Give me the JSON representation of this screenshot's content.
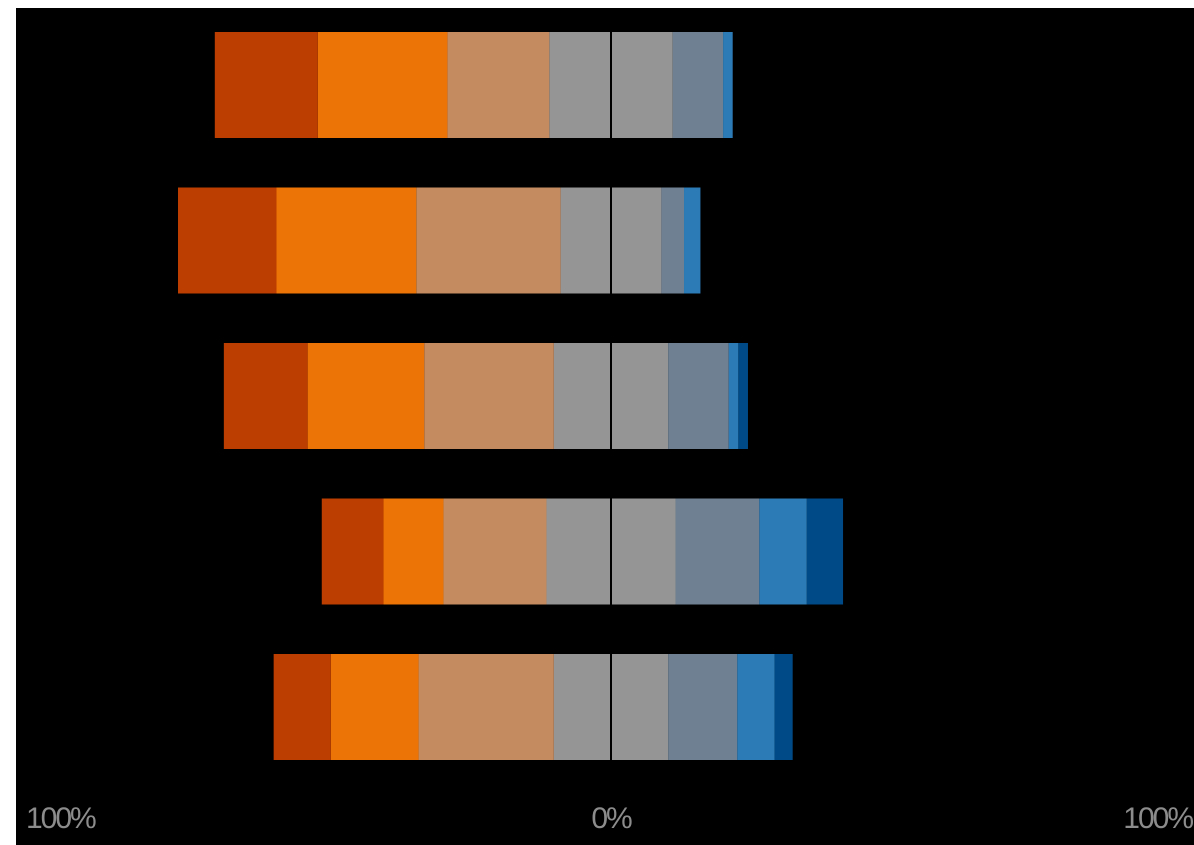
{
  "chart_data": {
    "type": "bar",
    "orientation": "horizontal",
    "stacking": "diverging",
    "background_color": "#000000",
    "grid": false,
    "legend": "none",
    "center_line_color": "#000000",
    "xlim": [
      -100,
      100
    ],
    "x_tick_labels": [
      "100%",
      "0%",
      "100%"
    ],
    "categories": [
      "",
      "",
      "",
      "",
      ""
    ],
    "series": [
      {
        "side": "negative",
        "color": "#bd3e01",
        "values": [
          18.2,
          17.4,
          14.8,
          10.9,
          10.1
        ]
      },
      {
        "side": "negative",
        "color": "#ec7305",
        "values": [
          22.9,
          24.7,
          20.6,
          10.6,
          15.5
        ]
      },
      {
        "side": "negative",
        "color": "#c48b61",
        "values": [
          18.0,
          25.5,
          22.9,
          18.2,
          23.9
        ]
      },
      {
        "side": "negative",
        "color": "#959595",
        "values": [
          10.9,
          8.9,
          10.1,
          11.4,
          10.1
        ]
      },
      {
        "side": "positive",
        "color": "#959595",
        "values": [
          10.9,
          8.9,
          10.1,
          11.4,
          10.1
        ]
      },
      {
        "side": "positive",
        "color": "#6f8092",
        "values": [
          8.9,
          4.0,
          10.7,
          14.8,
          12.2
        ]
      },
      {
        "side": "positive",
        "color": "#2d7bb6",
        "values": [
          1.7,
          2.9,
          1.7,
          8.4,
          6.6
        ]
      },
      {
        "side": "positive",
        "color": "#004a87",
        "values": [
          0.0,
          0.0,
          1.7,
          6.4,
          3.2
        ]
      }
    ]
  }
}
